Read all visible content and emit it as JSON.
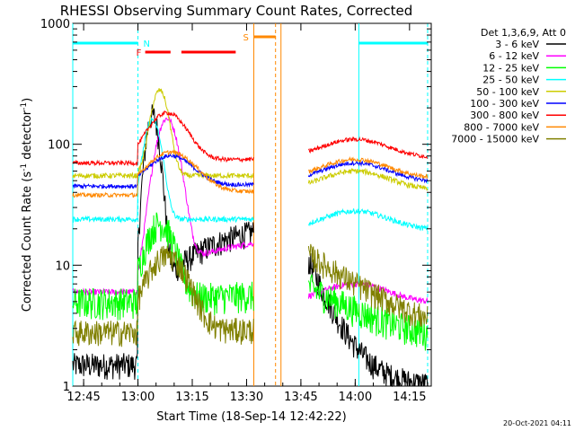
{
  "chart_data": {
    "type": "line",
    "title": "RHESSI Observing Summary Count Rates, Corrected",
    "xlabel": "Start Time (18-Sep-14 12:42:22)",
    "ylabel": "Corrected Count Rate (s",
    "ylabel_sup1": "-1",
    "ylabel_mid": " detector",
    "ylabel_sup2": "-1",
    "ylabel_end": ")",
    "y_scale": "log",
    "ylim": [
      1,
      1000
    ],
    "xlim_minutes_after_1242": [
      0,
      99
    ],
    "x_ticks": [
      {
        "label": "12:45",
        "minute": 3
      },
      {
        "label": "13:00",
        "minute": 18
      },
      {
        "label": "13:15",
        "minute": 33
      },
      {
        "label": "13:30",
        "minute": 48
      },
      {
        "label": "13:45",
        "minute": 63
      },
      {
        "label": "14:00",
        "minute": 78
      },
      {
        "label": "14:15",
        "minute": 93
      }
    ],
    "y_ticks": [
      {
        "label": "1",
        "value": 1
      },
      {
        "label": "10",
        "value": 10
      },
      {
        "label": "100",
        "value": 100
      },
      {
        "label": "1000",
        "value": 1000
      }
    ],
    "legend_header": "Det 1,3,6,9, Att 0",
    "legend_position": "right",
    "timestamp": "20-Oct-2021 04:11",
    "gap_minutes": [
      50,
      64
    ],
    "series": [
      {
        "name": "3 - 6 keV",
        "color": "#000000",
        "base": 1.5,
        "peak": 170,
        "peakT": 22,
        "width": 2.5,
        "tail": 28,
        "post": 10,
        "noise": 0.1
      },
      {
        "name": "6 - 12 keV",
        "color": "#ff00ff",
        "base": 6,
        "peak": 160,
        "peakT": 26,
        "width": 4,
        "tail": 20,
        "post": 7,
        "noise": 0.06
      },
      {
        "name": "12 - 25 keV",
        "color": "#00ff00",
        "base": 5,
        "peak": 22,
        "peakT": 24,
        "width": 5,
        "tail": 6,
        "post": 5,
        "noise": 0.12
      },
      {
        "name": "25 - 50 keV",
        "color": "#00ffff",
        "base": 24,
        "peak": 160,
        "peakT": 22,
        "width": 3,
        "tail": 24,
        "post": 28,
        "noise": 0.05
      },
      {
        "name": "50 - 100 keV",
        "color": "#cccc00",
        "base": 55,
        "peak": 280,
        "peakT": 24,
        "width": 3,
        "tail": 55,
        "post": 60,
        "noise": 0.05
      },
      {
        "name": "100 - 300 keV",
        "color": "#0000ff",
        "base": 45,
        "peak": 80,
        "peakT": 27,
        "width": 8,
        "tail": 47,
        "post": 70,
        "noise": 0.04
      },
      {
        "name": "300 - 800 keV",
        "color": "#ff0000",
        "base": 70,
        "peak": 180,
        "peakT": 26,
        "width": 7,
        "tail": 78,
        "post": 110,
        "noise": 0.04
      },
      {
        "name": "800 - 7000 keV",
        "color": "#ff8800",
        "base": 38,
        "peak": 85,
        "peakT": 27,
        "width": 9,
        "tail": 42,
        "post": 75,
        "noise": 0.04
      },
      {
        "name": "7000 - 15000 keV",
        "color": "#808000",
        "base": 2.8,
        "peak": 12,
        "peakT": 26,
        "width": 7,
        "tail": 3,
        "post": 11,
        "noise": 0.1
      }
    ],
    "flags": [
      {
        "label": "N",
        "color": "#00ffff",
        "segments": [
          [
            0,
            18
          ],
          [
            79,
            98
          ]
        ]
      },
      {
        "label": "F",
        "color": "#ff0000",
        "segments": [
          [
            20,
            27
          ],
          [
            30,
            45
          ]
        ]
      },
      {
        "label": "S",
        "color": "#ff8800",
        "segments": [
          [
            50,
            56
          ]
        ]
      }
    ]
  }
}
